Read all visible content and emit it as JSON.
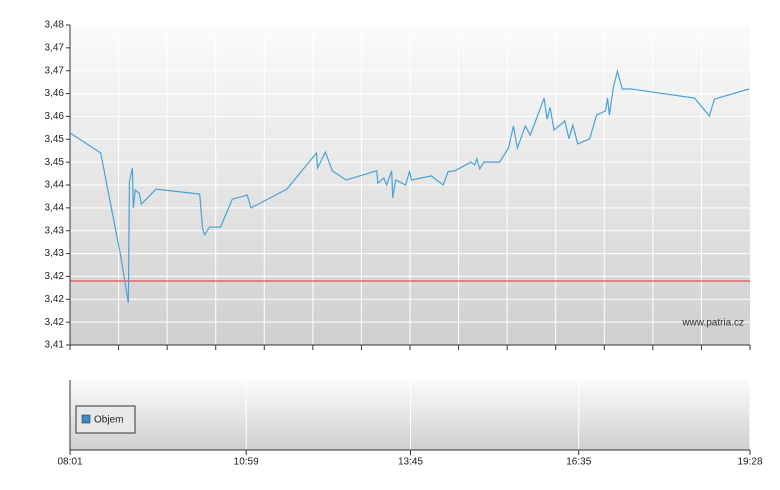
{
  "chart_data": {
    "type": "line",
    "watermark": "www.patria.cz",
    "x": [
      481,
      512,
      532,
      540,
      541,
      544,
      545,
      547,
      551,
      553,
      568,
      612,
      615,
      617,
      622,
      633,
      645,
      660,
      664,
      700,
      730,
      731,
      739,
      746,
      760,
      791,
      792,
      798,
      801,
      806,
      807,
      810,
      820,
      824,
      826,
      846,
      858,
      863,
      870,
      886,
      890,
      892,
      895,
      899,
      915,
      924,
      929,
      933,
      941,
      946,
      960,
      963,
      966,
      970,
      981,
      985,
      989,
      994,
      1006,
      1013,
      1022,
      1024,
      1026,
      1030,
      1034,
      1039,
      1048,
      1112,
      1127,
      1132,
      1167
    ],
    "series": [
      {
        "color": "#4aa3d4",
        "values": [
          3.4564,
          3.452,
          3.4297,
          3.4192,
          3.4457,
          3.4487,
          3.44,
          3.4439,
          3.4432,
          3.4408,
          3.4441,
          3.443,
          3.4354,
          3.4341,
          3.4358,
          3.4358,
          3.4419,
          3.4428,
          3.44,
          3.4441,
          3.452,
          3.4487,
          3.4522,
          3.4481,
          3.4461,
          3.4481,
          3.4454,
          3.4465,
          3.445,
          3.4481,
          3.4422,
          3.4461,
          3.445,
          3.4479,
          3.4461,
          3.447,
          3.445,
          3.4479,
          3.4481,
          3.45,
          3.4494,
          3.4507,
          3.4485,
          3.45,
          3.45,
          3.4531,
          3.4579,
          3.4531,
          3.4579,
          3.4559,
          3.464,
          3.4594,
          3.462,
          3.457,
          3.459,
          3.4551,
          3.4581,
          3.454,
          3.4551,
          3.4603,
          3.4612,
          3.464,
          3.4603,
          3.4664,
          3.4699,
          3.466,
          3.466,
          3.464,
          3.4601,
          3.4638,
          3.466
        ]
      }
    ],
    "reference_line": {
      "value": 3.424,
      "color": "#e03030"
    },
    "volume": {
      "name": "Objem",
      "color": "#3a8fc8"
    },
    "xlim": [
      481,
      1168
    ],
    "xticks": [
      {
        "value": 481,
        "label": "08:01"
      },
      {
        "value": 659,
        "label": "10:59"
      },
      {
        "value": 825,
        "label": "13:45"
      },
      {
        "value": 995,
        "label": "16:35"
      },
      {
        "value": 1168,
        "label": "19:28"
      }
    ],
    "ylim": [
      3.41,
      3.48
    ],
    "yticks": [
      {
        "value": 3.41,
        "label": "3,41"
      },
      {
        "value": 3.415,
        "label": "3,42"
      },
      {
        "value": 3.42,
        "label": "3,42"
      },
      {
        "value": 3.425,
        "label": "3,42"
      },
      {
        "value": 3.43,
        "label": "3,43"
      },
      {
        "value": 3.435,
        "label": "3,43"
      },
      {
        "value": 3.44,
        "label": "3,44"
      },
      {
        "value": 3.445,
        "label": "3,44"
      },
      {
        "value": 3.45,
        "label": "3,45"
      },
      {
        "value": 3.455,
        "label": "3,45"
      },
      {
        "value": 3.46,
        "label": "3,46"
      },
      {
        "value": 3.465,
        "label": "3,46"
      },
      {
        "value": 3.47,
        "label": "3,47"
      },
      {
        "value": 3.475,
        "label": "3,47"
      },
      {
        "value": 3.48,
        "label": "3,48"
      }
    ],
    "grid": true
  }
}
